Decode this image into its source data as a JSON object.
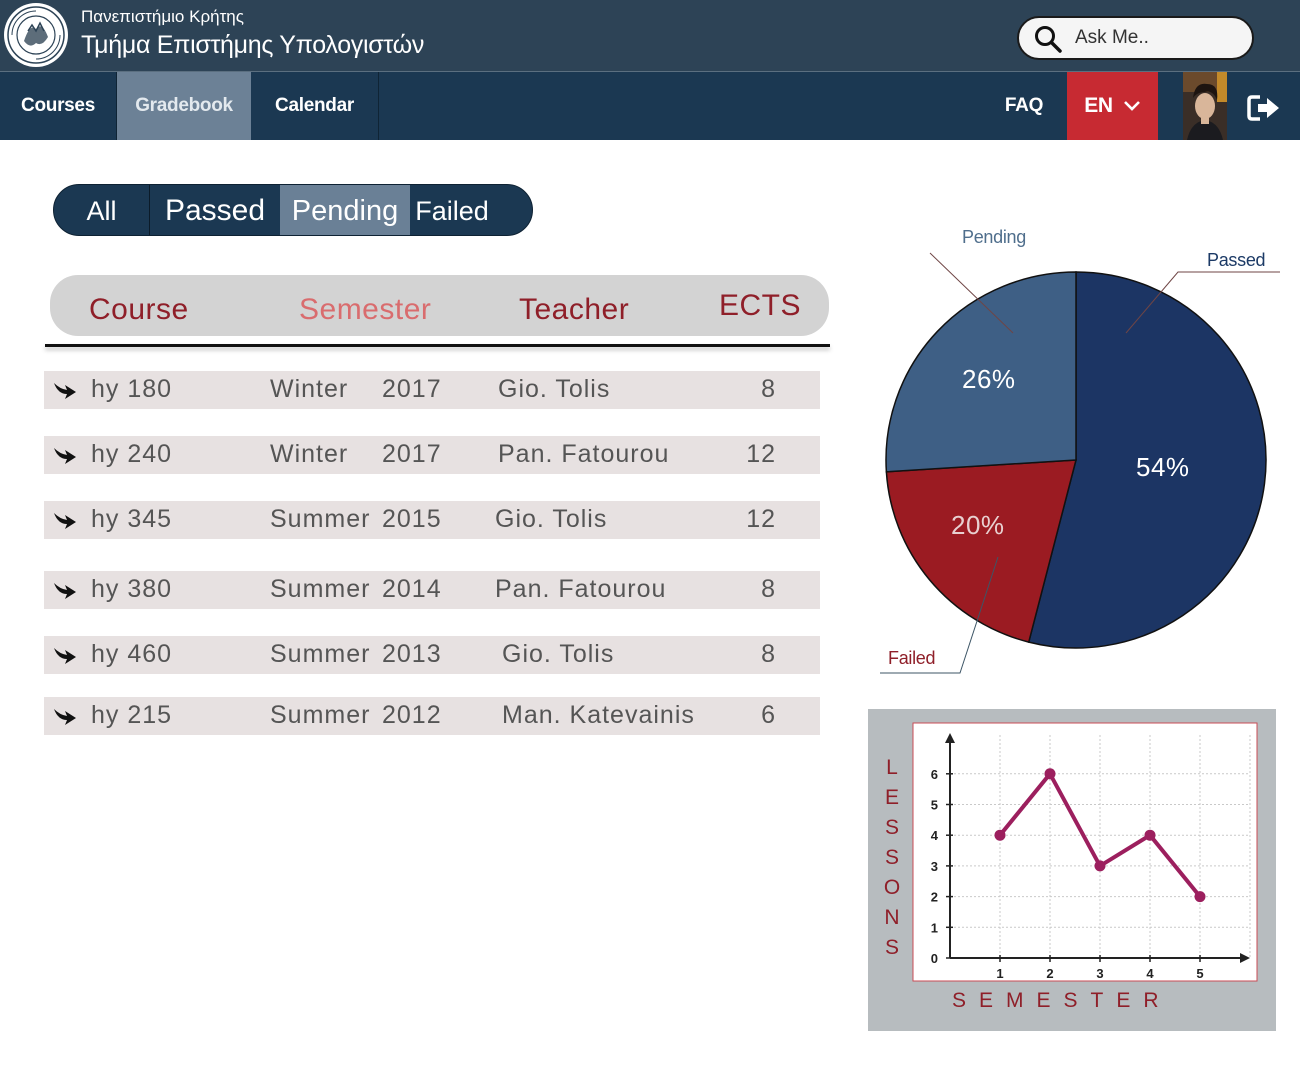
{
  "header": {
    "university": "Πανεπιστήμιο Κρήτης",
    "department": "Τμήμα Επιστήμης Υπολογιστών",
    "search_placeholder": "Ask Me.."
  },
  "nav": {
    "items": [
      {
        "label": "Courses"
      },
      {
        "label": "Gradebook",
        "active": true
      },
      {
        "label": "Calendar"
      }
    ],
    "faq": "FAQ",
    "language": "EN"
  },
  "filters": {
    "items": [
      {
        "label": "All"
      },
      {
        "label": "Passed"
      },
      {
        "label": "Pending",
        "active": true
      },
      {
        "label": "Failed"
      }
    ]
  },
  "table": {
    "headers": {
      "course": "Course",
      "semester": "Semester",
      "teacher": "Teacher",
      "ects": "ECTS"
    },
    "rows": [
      {
        "course": "hy 180",
        "season": "Winter",
        "year": "2017",
        "teacher": "Gio. Tolis",
        "ects": "8"
      },
      {
        "course": "hy 240",
        "season": "Winter",
        "year": "2017",
        "teacher": "Pan. Fatourou",
        "ects": "12"
      },
      {
        "course": "hy 345",
        "season": "Summer",
        "year": "2015",
        "teacher": "Gio. Tolis",
        "ects": "12"
      },
      {
        "course": "hy 380",
        "season": "Summer",
        "year": "2014",
        "teacher": "Pan. Fatourou",
        "ects": "8"
      },
      {
        "course": "hy 460",
        "season": "Summer",
        "year": "2013",
        "teacher": "Gio. Tolis",
        "ects": "8"
      },
      {
        "course": "hy 215",
        "season": "Summer",
        "year": "2012",
        "teacher": "Man. Katevainis",
        "ects": "6"
      }
    ]
  },
  "colors": {
    "header_bg": "#2d4356",
    "nav_bg": "#1b3852",
    "active_tab": "#6c8196",
    "accent_red": "#c72a32",
    "passed": "#1c3564",
    "pending": "#3e5f85",
    "failed": "#9b1b22",
    "line": "#9c1f5e"
  },
  "chart_data": [
    {
      "type": "pie",
      "slices": [
        {
          "name": "Passed",
          "value": 54,
          "label": "54%",
          "color": "#1c3564"
        },
        {
          "name": "Failed",
          "value": 20,
          "label": "20%",
          "color": "#9b1b22"
        },
        {
          "name": "Pending",
          "value": 26,
          "label": "26%",
          "color": "#3e5f85"
        }
      ]
    },
    {
      "type": "line",
      "x": [
        1,
        2,
        3,
        4,
        5
      ],
      "series": [
        {
          "values": [
            4,
            6,
            3,
            4,
            2
          ]
        }
      ],
      "xlabel": "SEMESTER",
      "ylabel": "LESSONS",
      "xticks": [
        "1",
        "2",
        "3",
        "4",
        "5"
      ],
      "yticks": [
        "0",
        "1",
        "2",
        "3",
        "4",
        "5",
        "6"
      ],
      "xlim": [
        0,
        6
      ],
      "ylim": [
        0,
        7
      ],
      "grid": true
    }
  ]
}
